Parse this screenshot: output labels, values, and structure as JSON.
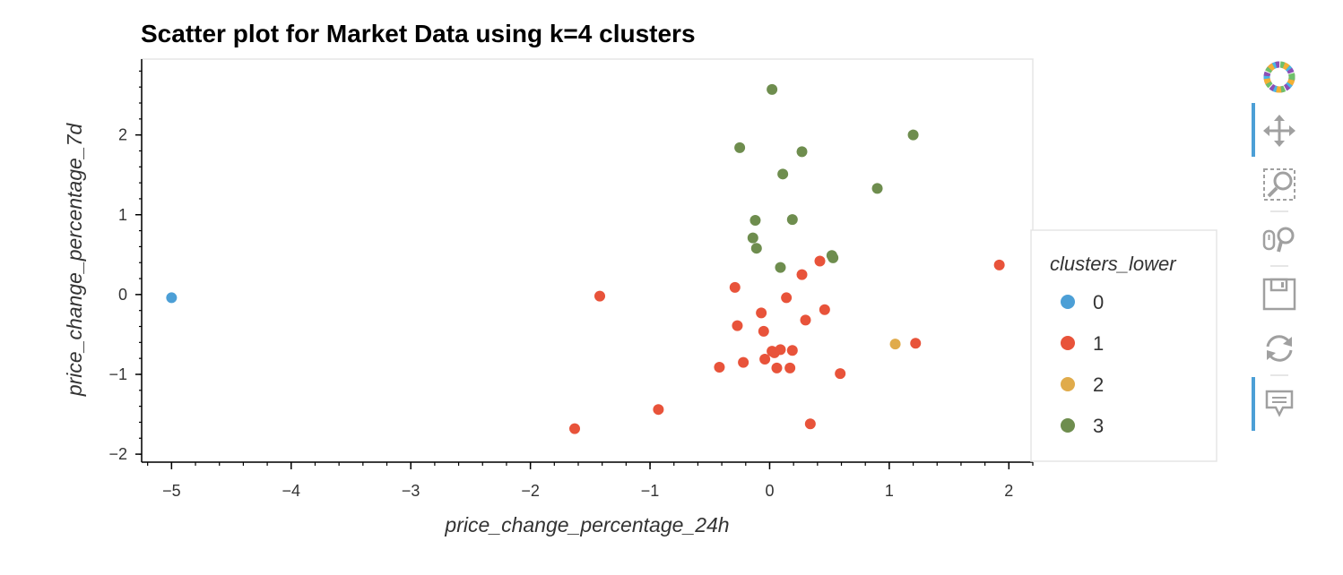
{
  "chart_data": {
    "type": "scatter",
    "title": "Scatter plot for Market Data using k=4 clusters",
    "xlabel": "price_change_percentage_24h",
    "ylabel": "price_change_percentage_7d",
    "xlim": [
      -5.25,
      2.2
    ],
    "ylim": [
      -2.1,
      2.95
    ],
    "x_ticks": [
      -5,
      -4,
      -3,
      -2,
      -1,
      0,
      1,
      2
    ],
    "x_tick_labels": [
      "−5",
      "−4",
      "−3",
      "−2",
      "−1",
      "0",
      "1",
      "2"
    ],
    "y_ticks": [
      -2,
      -1,
      0,
      1,
      2
    ],
    "y_tick_labels": [
      "−2",
      "−1",
      "0",
      "1",
      "2"
    ],
    "grid": false,
    "legend": {
      "title": "clusters_lower",
      "placement": "right"
    },
    "series": [
      {
        "name": "0",
        "color": "#4c9fd6",
        "points": [
          [
            -5.0,
            -0.04
          ]
        ]
      },
      {
        "name": "1",
        "color": "#e8533a",
        "points": [
          [
            -1.63,
            -1.68
          ],
          [
            -1.42,
            -0.02
          ],
          [
            -0.93,
            -1.44
          ],
          [
            -0.42,
            -0.91
          ],
          [
            -0.29,
            0.09
          ],
          [
            -0.27,
            -0.39
          ],
          [
            -0.22,
            -0.85
          ],
          [
            -0.07,
            -0.23
          ],
          [
            -0.05,
            -0.46
          ],
          [
            -0.04,
            -0.81
          ],
          [
            0.02,
            -0.71
          ],
          [
            0.04,
            -0.73
          ],
          [
            0.06,
            -0.92
          ],
          [
            0.09,
            -0.69
          ],
          [
            0.14,
            -0.04
          ],
          [
            0.17,
            -0.92
          ],
          [
            0.19,
            -0.7
          ],
          [
            0.27,
            0.25
          ],
          [
            0.3,
            -0.32
          ],
          [
            0.34,
            -1.62
          ],
          [
            0.42,
            0.42
          ],
          [
            0.46,
            -0.19
          ],
          [
            0.59,
            -0.99
          ],
          [
            1.22,
            -0.61
          ],
          [
            1.92,
            0.37
          ]
        ]
      },
      {
        "name": "2",
        "color": "#e0ab4b",
        "points": [
          [
            1.05,
            -0.62
          ]
        ]
      },
      {
        "name": "3",
        "color": "#6e8d4e",
        "points": [
          [
            0.02,
            2.57
          ],
          [
            -0.25,
            1.84
          ],
          [
            0.27,
            1.79
          ],
          [
            1.2,
            2.0
          ],
          [
            0.11,
            1.51
          ],
          [
            0.9,
            1.33
          ],
          [
            -0.12,
            0.93
          ],
          [
            0.19,
            0.94
          ],
          [
            -0.14,
            0.71
          ],
          [
            -0.11,
            0.58
          ],
          [
            0.09,
            0.34
          ],
          [
            0.52,
            0.49
          ],
          [
            0.53,
            0.46
          ]
        ]
      }
    ]
  },
  "toolbar": {
    "tools": [
      {
        "name": "bokeh-logo",
        "active": false
      },
      {
        "name": "pan-tool",
        "active": true
      },
      {
        "name": "box-zoom-tool",
        "active": false
      },
      {
        "name": "wheel-zoom-tool",
        "active": false
      },
      {
        "name": "save-tool",
        "active": false
      },
      {
        "name": "reset-tool",
        "active": false
      },
      {
        "name": "hover-tool",
        "active": true
      }
    ],
    "active_color": "#4c9fd6",
    "icon_color": "#a0a0a0"
  }
}
